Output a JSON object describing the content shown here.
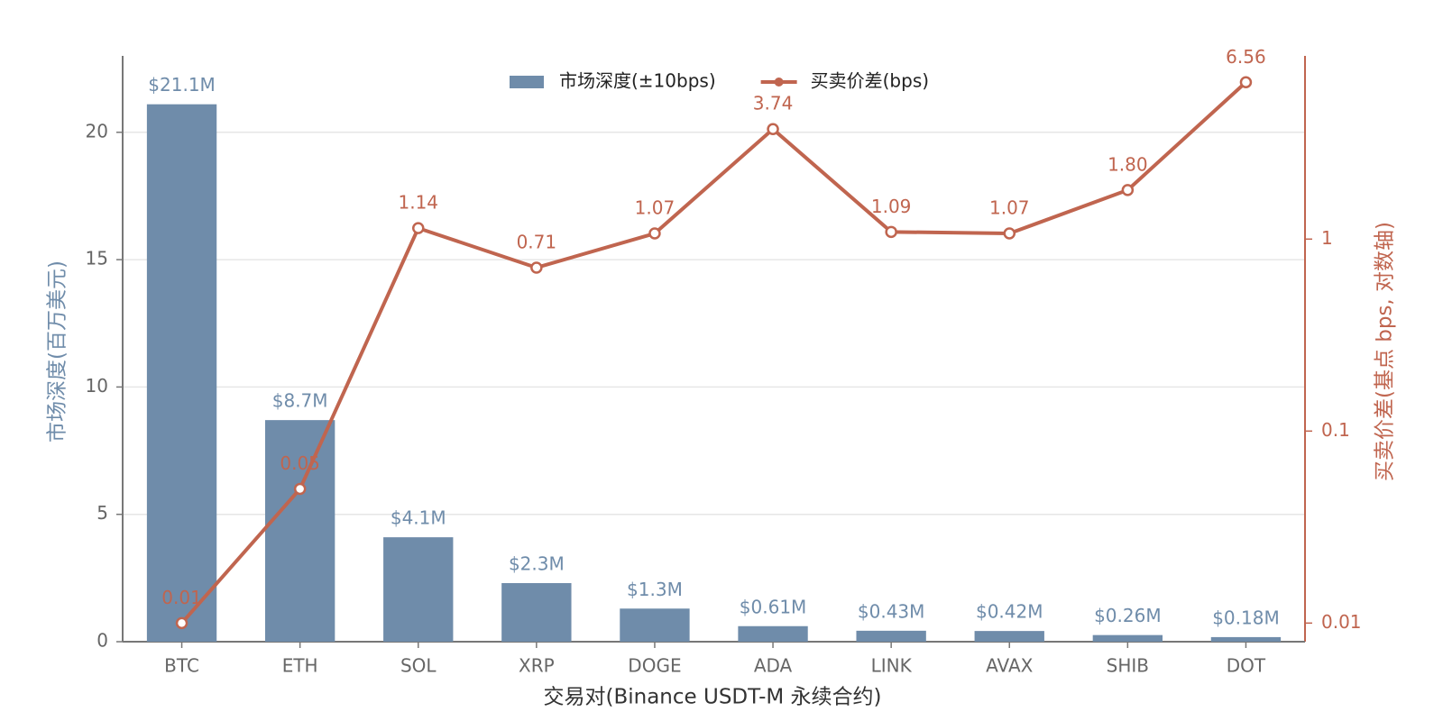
{
  "chart_data": {
    "type": "bar",
    "xlabel": "交易对(Binance USDT-M 永续合约)",
    "ylabel": "市场深度(百万美元)",
    "y2label": "买卖价差(基点 bps, 对数轴)",
    "categories": [
      "BTC",
      "ETH",
      "SOL",
      "XRP",
      "DOGE",
      "ADA",
      "LINK",
      "AVAX",
      "SHIB",
      "DOT"
    ],
    "series": [
      {
        "name": "市场深度(±10bps)",
        "type": "bar",
        "color": "#6f8caa",
        "values": [
          21.1,
          8.7,
          4.1,
          2.3,
          1.3,
          0.61,
          0.43,
          0.42,
          0.26,
          0.18
        ],
        "value_labels": [
          "$21.1M",
          "$8.7M",
          "$4.1M",
          "$2.3M",
          "$1.3M",
          "$0.61M",
          "$0.43M",
          "$0.42M",
          "$0.26M",
          "$0.18M"
        ]
      },
      {
        "name": "买卖价差(bps)",
        "type": "line",
        "axis": "y2",
        "color": "#c0654f",
        "values": [
          0.01,
          0.05,
          1.14,
          0.71,
          1.07,
          3.74,
          1.09,
          1.07,
          1.8,
          6.56
        ],
        "value_labels": [
          "0.01",
          "0.05",
          "1.14",
          "0.71",
          "1.07",
          "3.74",
          "1.09",
          "1.07",
          "1.80",
          "6.56"
        ]
      }
    ],
    "ylim": [
      0,
      23
    ],
    "yticks": [
      0,
      5,
      10,
      15,
      20
    ],
    "y2lim": [
      0.008,
      9
    ],
    "y2ticks": [
      0.01,
      0.1,
      1
    ],
    "y2scale": "log",
    "grid": true,
    "legend": "top"
  }
}
